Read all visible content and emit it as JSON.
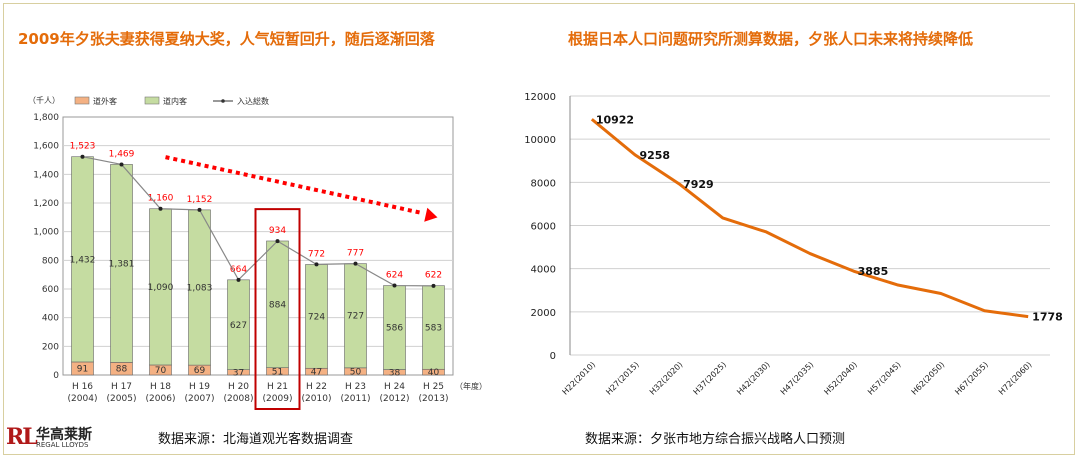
{
  "left_title": "2009年夕张夫妻获得夏纳大奖，人气短暂回升，随后逐渐回落",
  "right_title": "根据日本人口问题研究所测算数据，夕张人口未来将持续降低",
  "left_source": "数据来源：北海道观光客数据调查",
  "right_source": "数据来源：夕张市地方综合振兴战略人口预测",
  "logo": {
    "cn": "华高莱斯",
    "en": "REGAL LLOYDS"
  },
  "colors": {
    "accent": "#e46c0a",
    "bar_outside": "#f4b183",
    "bar_inside": "#c5dca1",
    "arrow": "#ff0000",
    "highlight_box": "#c00000",
    "total_label": "#ff0000"
  },
  "chart_data": [
    {
      "type": "bar",
      "stacked": true,
      "unit_label": "（千人）",
      "year_suffix": "（年度）",
      "legend": [
        "道外客",
        "道内客",
        "入込総数"
      ],
      "categories": [
        "H 16",
        "H 17",
        "H 18",
        "H 19",
        "H 20",
        "H 21",
        "H 22",
        "H 23",
        "H 24",
        "H 25"
      ],
      "sub_categories": [
        "(2004)",
        "(2005)",
        "(2006)",
        "(2007)",
        "(2008)",
        "(2009)",
        "(2010)",
        "(2011)",
        "(2012)",
        "(2013)"
      ],
      "series": [
        {
          "name": "道外客",
          "values": [
            91,
            88,
            70,
            69,
            37,
            51,
            47,
            50,
            38,
            40
          ]
        },
        {
          "name": "道内客",
          "values": [
            1432,
            1381,
            1090,
            1083,
            627,
            884,
            724,
            727,
            586,
            583
          ]
        }
      ],
      "totals": {
        "name": "入込総数",
        "values": [
          1523,
          1469,
          1160,
          1152,
          664,
          934,
          772,
          777,
          624,
          622
        ]
      },
      "y_ticks": [
        "0",
        "200",
        "400",
        "600",
        "800",
        "1,000",
        "1,200",
        "1,400",
        "1,600",
        "1,800"
      ],
      "ylim": [
        0,
        1800
      ],
      "highlight_index": 5,
      "trend_arrow": true
    },
    {
      "type": "line",
      "categories": [
        "H22(2010)",
        "H27(2015)",
        "H32(2020)",
        "H37(2025)",
        "H42(2030)",
        "H47(2035)",
        "H52(2040)",
        "H57(2045)",
        "H62(2050)",
        "H67(2055)",
        "H72(2060)"
      ],
      "values": [
        10922,
        9258,
        7929,
        6350,
        5700,
        4700,
        3885,
        3250,
        2850,
        2050,
        1778
      ],
      "labels": [
        "10922",
        "9258",
        "7929",
        null,
        null,
        null,
        "3885",
        null,
        null,
        null,
        "1778"
      ],
      "y_ticks": [
        "0",
        "2000",
        "4000",
        "6000",
        "8000",
        "10000",
        "12000"
      ],
      "ylim": [
        0,
        12000
      ],
      "grid": true,
      "color": "#e46c0a"
    }
  ]
}
